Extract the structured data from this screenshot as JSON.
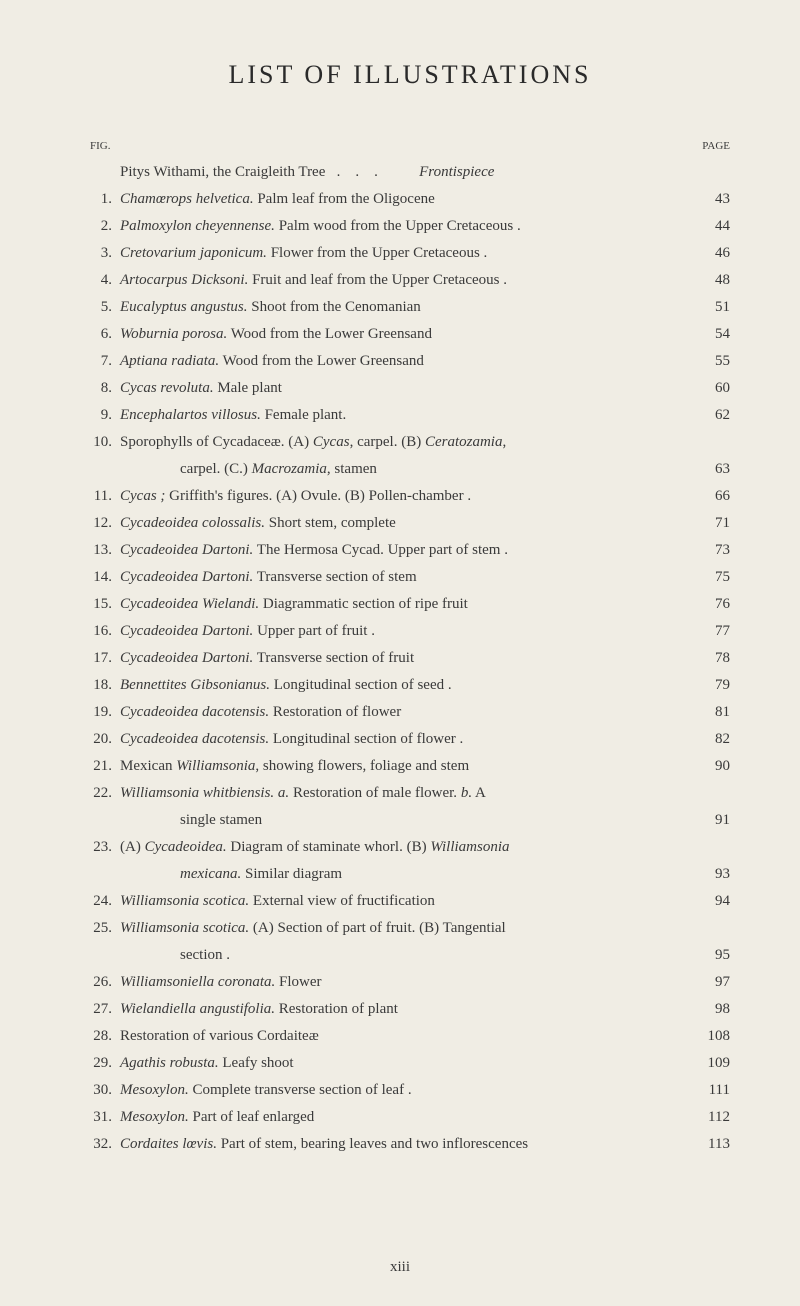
{
  "title": "LIST OF ILLUSTRATIONS",
  "header": {
    "fig": "FIG.",
    "page": "PAGE"
  },
  "frontispiece": {
    "italic": "Pitys Withami",
    "rest": ", the Craigleith Tree",
    "label": "Frontispiece"
  },
  "items": [
    {
      "num": "1.",
      "italic": "Chamœrops helvetica.",
      "rest": " Palm leaf from the Oligocene",
      "page": "43"
    },
    {
      "num": "2.",
      "italic": "Palmoxylon cheyennense.",
      "rest": " Palm wood from the Upper Cretaceous .",
      "page": "44"
    },
    {
      "num": "3.",
      "italic": "Cretovarium japonicum.",
      "rest": " Flower from the Upper Cretaceous .",
      "page": "46"
    },
    {
      "num": "4.",
      "italic": "Artocarpus Dicksoni.",
      "rest": " Fruit and leaf from the Upper Cretaceous .",
      "page": "48"
    },
    {
      "num": "5.",
      "italic": "Eucalyptus angustus.",
      "rest": " Shoot from the Cenomanian",
      "page": "51"
    },
    {
      "num": "6.",
      "italic": "Woburnia porosa.",
      "rest": " Wood from the Lower Greensand",
      "page": "54"
    },
    {
      "num": "7.",
      "italic": "Aptiana radiata.",
      "rest": " Wood from the Lower Greensand",
      "page": "55"
    },
    {
      "num": "8.",
      "italic": "Cycas revoluta.",
      "rest": " Male plant",
      "page": "60"
    },
    {
      "num": "9.",
      "italic": "Encephalartos villosus.",
      "rest": " Female plant.",
      "page": "62"
    },
    {
      "num": "10.",
      "text": "Sporophylls of Cycadaceæ. (A) ",
      "italic2": "Cycas",
      "rest2": ", carpel. (B) ",
      "italic3": "Ceratozamia",
      "rest3": ",",
      "page": ""
    },
    {
      "num": "",
      "cont": true,
      "text": "carpel. (C.) ",
      "italic": "Macrozamia",
      "rest": ", stamen",
      "page": "63"
    },
    {
      "num": "11.",
      "italic": "Cycas ;",
      "rest": " Griffith's figures. (A) Ovule. (B) Pollen-chamber .",
      "page": "66"
    },
    {
      "num": "12.",
      "italic": "Cycadeoidea colossalis.",
      "rest": " Short stem, complete",
      "page": "71"
    },
    {
      "num": "13.",
      "italic": "Cycadeoidea Dartoni.",
      "rest": " The Hermosa Cycad. Upper part of stem .",
      "page": "73"
    },
    {
      "num": "14.",
      "italic": "Cycadeoidea Dartoni.",
      "rest": " Transverse section of stem",
      "page": "75"
    },
    {
      "num": "15.",
      "italic": "Cycadeoidea Wielandi.",
      "rest": " Diagrammatic section of ripe fruit",
      "page": "76"
    },
    {
      "num": "16.",
      "italic": "Cycadeoidea Dartoni.",
      "rest": " Upper part of fruit .",
      "page": "77"
    },
    {
      "num": "17.",
      "italic": "Cycadeoidea Dartoni.",
      "rest": " Transverse section of fruit",
      "page": "78"
    },
    {
      "num": "18.",
      "italic": "Bennettites Gibsonianus.",
      "rest": " Longitudinal section of seed .",
      "page": "79"
    },
    {
      "num": "19.",
      "italic": "Cycadeoidea dacotensis.",
      "rest": " Restoration of flower",
      "page": "81"
    },
    {
      "num": "20.",
      "italic": "Cycadeoidea dacotensis.",
      "rest": " Longitudinal section of flower .",
      "page": "82"
    },
    {
      "num": "21.",
      "text": "Mexican ",
      "italic": "Williamsonia",
      "rest": ", showing flowers, foliage and stem",
      "page": "90"
    },
    {
      "num": "22.",
      "italic": "Williamsonia whitbiensis. a.",
      "rest": " Restoration of male flower. ",
      "italic2": "b.",
      "rest2": " A",
      "page": ""
    },
    {
      "num": "",
      "cont": true,
      "text": "single stamen",
      "page": "91"
    },
    {
      "num": "23.",
      "text": "(A) ",
      "italic": "Cycadeoidea.",
      "rest": " Diagram of staminate whorl. (B) ",
      "italic2": "Williamsonia",
      "page": ""
    },
    {
      "num": "",
      "cont": true,
      "italic": "mexicana.",
      "rest": " Similar diagram",
      "page": "93"
    },
    {
      "num": "24.",
      "italic": "Williamsonia scotica.",
      "rest": " External view of fructification",
      "page": "94"
    },
    {
      "num": "25.",
      "italic": "Williamsonia scotica.",
      "rest": " (A) Section of part of fruit. (B) Tangential",
      "page": ""
    },
    {
      "num": "",
      "cont": true,
      "text": "section .",
      "page": "95"
    },
    {
      "num": "26.",
      "italic": "Williamsoniella coronata.",
      "rest": " Flower",
      "page": "97"
    },
    {
      "num": "27.",
      "italic": "Wielandiella angustifolia.",
      "rest": " Restoration of plant",
      "page": "98"
    },
    {
      "num": "28.",
      "text": "Restoration of various Cordaiteæ",
      "page": "108"
    },
    {
      "num": "29.",
      "italic": "Agathis robusta.",
      "rest": " Leafy shoot",
      "page": "109"
    },
    {
      "num": "30.",
      "italic": "Mesoxylon.",
      "rest": " Complete transverse section of leaf .",
      "page": "111"
    },
    {
      "num": "31.",
      "italic": "Mesoxylon.",
      "rest": " Part of leaf enlarged",
      "page": "112"
    },
    {
      "num": "32.",
      "italic": "Cordaites lœvis.",
      "rest": " Part of stem, bearing leaves and two inflorescences",
      "page": "113"
    }
  ],
  "pageNum": "xiii"
}
